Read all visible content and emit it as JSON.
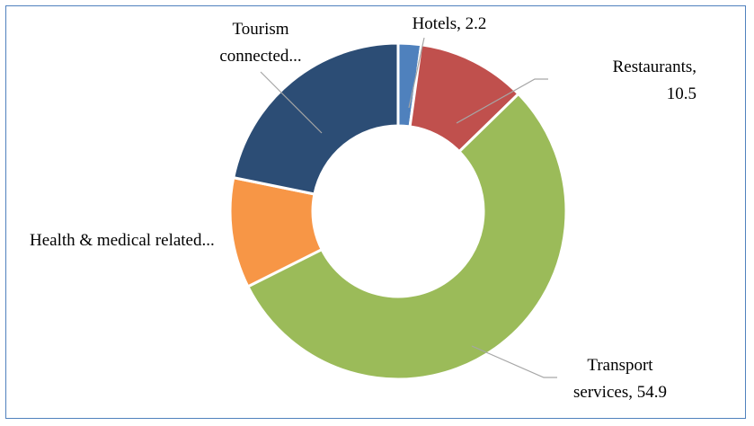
{
  "chart_data": {
    "type": "donut",
    "categories": [
      "Hotels",
      "Restaurants",
      "Transport services",
      "Health & medical related...",
      "Tourism connected..."
    ],
    "values": [
      2.2,
      10.5,
      54.9,
      10.6,
      21.8
    ],
    "value_labels": [
      "Hotels, 2.2",
      "Restaurants,\n10.5",
      "Transport\nservices, 54.9",
      "Health & medical related...",
      "Tourism\nconnected..."
    ],
    "colors": [
      "#4f81bd",
      "#c0504d",
      "#9bbb59",
      "#f79646",
      "#2c4d75"
    ]
  }
}
